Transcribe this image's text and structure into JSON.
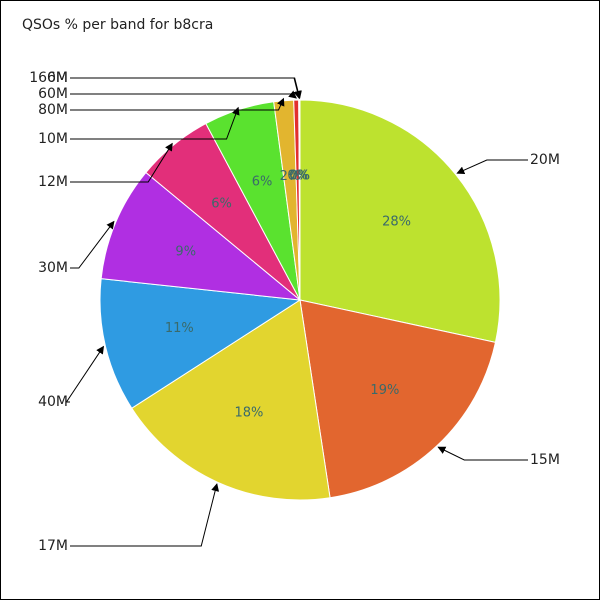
{
  "chart_data": {
    "type": "pie",
    "title": "QSOs % per band for b8cra",
    "categories": [
      "20M",
      "15M",
      "17M",
      "40M",
      "30M",
      "12M",
      "10M",
      "80M",
      "60M",
      "6M",
      "160M"
    ],
    "values": [
      28.4,
      19.2,
      18.3,
      10.8,
      9.3,
      6.2,
      5.7,
      1.6,
      0.4,
      0.05,
      0.05
    ],
    "value_labels": [
      "28%",
      "19%",
      "18%",
      "11%",
      "9%",
      "6%",
      "6%",
      "2%",
      "0%",
      "0%",
      "0%"
    ],
    "colors": [
      "#bde22f",
      "#e2662f",
      "#e2d52f",
      "#2f9be2",
      "#b02fe2",
      "#e22f7a",
      "#5ae22f",
      "#e2b52f",
      "#e22f2f",
      "#2fe2b0",
      "#2f5ae2"
    ]
  }
}
